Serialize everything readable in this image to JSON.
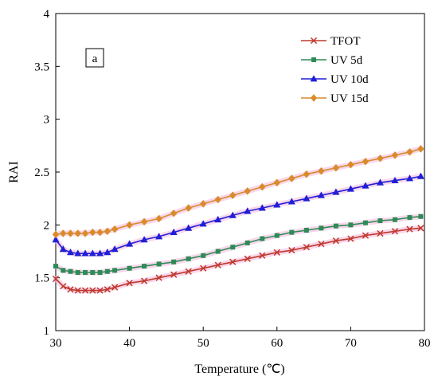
{
  "chart_data": {
    "type": "line",
    "panel_label": "a",
    "xlabel": "Temperature (℃)",
    "ylabel": "RAI",
    "xlim": [
      30,
      80
    ],
    "ylim": [
      1,
      4
    ],
    "x_ticks": [
      30,
      40,
      50,
      60,
      70,
      80
    ],
    "y_ticks": [
      "1",
      "1.5",
      "2",
      "2.5",
      "3",
      "3.5",
      "4"
    ],
    "grid": false,
    "legend_position": "top-right",
    "series": [
      {
        "name": "TFOT",
        "color": "#c0392b",
        "marker": "x",
        "x": [
          30,
          31,
          32,
          33,
          34,
          35,
          36,
          37,
          38,
          40,
          42,
          44,
          46,
          48,
          50,
          52,
          54,
          56,
          58,
          60,
          62,
          64,
          66,
          68,
          70,
          72,
          74,
          76,
          78,
          79.5
        ],
        "y": [
          1.49,
          1.42,
          1.39,
          1.38,
          1.38,
          1.38,
          1.38,
          1.39,
          1.41,
          1.45,
          1.47,
          1.5,
          1.53,
          1.56,
          1.59,
          1.62,
          1.65,
          1.68,
          1.71,
          1.74,
          1.76,
          1.79,
          1.82,
          1.85,
          1.87,
          1.9,
          1.92,
          1.94,
          1.96,
          1.97
        ]
      },
      {
        "name": "UV 5d",
        "color": "#2e8b57",
        "marker": "square",
        "x": [
          30,
          31,
          32,
          33,
          34,
          35,
          36,
          37,
          38,
          40,
          42,
          44,
          46,
          48,
          50,
          52,
          54,
          56,
          58,
          60,
          62,
          64,
          66,
          68,
          70,
          72,
          74,
          76,
          78,
          79.5
        ],
        "y": [
          1.61,
          1.57,
          1.56,
          1.55,
          1.55,
          1.55,
          1.55,
          1.56,
          1.57,
          1.59,
          1.61,
          1.63,
          1.65,
          1.68,
          1.71,
          1.75,
          1.79,
          1.83,
          1.87,
          1.9,
          1.93,
          1.95,
          1.97,
          1.99,
          2.0,
          2.02,
          2.04,
          2.05,
          2.07,
          2.08
        ]
      },
      {
        "name": "UV 10d",
        "color": "#1f1fd6",
        "marker": "triangle",
        "x": [
          30,
          31,
          32,
          33,
          34,
          35,
          36,
          37,
          38,
          40,
          42,
          44,
          46,
          48,
          50,
          52,
          54,
          56,
          58,
          60,
          62,
          64,
          66,
          68,
          70,
          72,
          74,
          76,
          78,
          79.5
        ],
        "y": [
          1.86,
          1.77,
          1.74,
          1.73,
          1.73,
          1.73,
          1.73,
          1.74,
          1.77,
          1.82,
          1.86,
          1.89,
          1.93,
          1.97,
          2.01,
          2.05,
          2.09,
          2.13,
          2.16,
          2.19,
          2.22,
          2.25,
          2.28,
          2.31,
          2.34,
          2.37,
          2.4,
          2.42,
          2.44,
          2.46
        ]
      },
      {
        "name": "UV 15d",
        "color": "#d98b2b",
        "marker": "diamond",
        "x": [
          30,
          31,
          32,
          33,
          34,
          35,
          36,
          37,
          38,
          40,
          42,
          44,
          46,
          48,
          50,
          52,
          54,
          56,
          58,
          60,
          62,
          64,
          66,
          68,
          70,
          72,
          74,
          76,
          78,
          79.5
        ],
        "y": [
          1.91,
          1.92,
          1.92,
          1.92,
          1.92,
          1.93,
          1.93,
          1.94,
          1.96,
          2.0,
          2.03,
          2.06,
          2.11,
          2.16,
          2.2,
          2.24,
          2.28,
          2.32,
          2.36,
          2.4,
          2.44,
          2.48,
          2.51,
          2.54,
          2.57,
          2.6,
          2.63,
          2.66,
          2.69,
          2.72
        ]
      }
    ]
  }
}
